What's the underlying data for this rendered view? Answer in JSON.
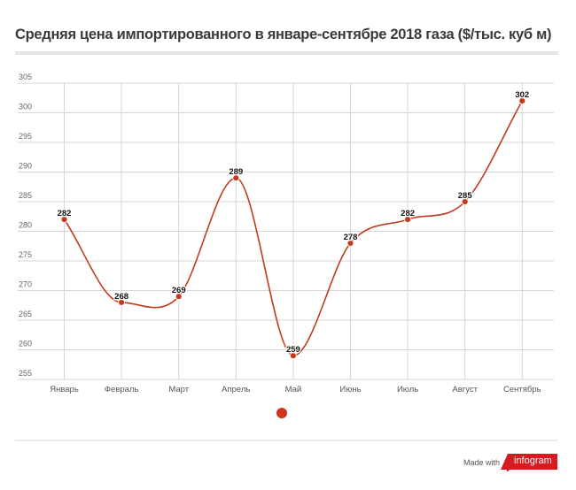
{
  "chart_data": {
    "type": "line",
    "title": "Средняя цена импортированного в январе-сентябре 2018 газа ($/тыс. куб м)",
    "categories": [
      "Январь",
      "Февраль",
      "Март",
      "Апрель",
      "Май",
      "Июнь",
      "Июль",
      "Август",
      "Сентябрь"
    ],
    "series": [
      {
        "name": "",
        "values": [
          282,
          268,
          269,
          289,
          259,
          278,
          282,
          285,
          302
        ]
      }
    ],
    "yticks": [
      305,
      300,
      295,
      290,
      285,
      280,
      275,
      270,
      265,
      260,
      255
    ],
    "ylim": [
      255,
      305
    ],
    "grid": true,
    "legend": "bottom-center",
    "color": "#c23a1e",
    "xlabel": "",
    "ylabel": ""
  },
  "footer": {
    "made_with": "Made with",
    "brand": "infogram",
    "brand_color": "#d71920"
  }
}
